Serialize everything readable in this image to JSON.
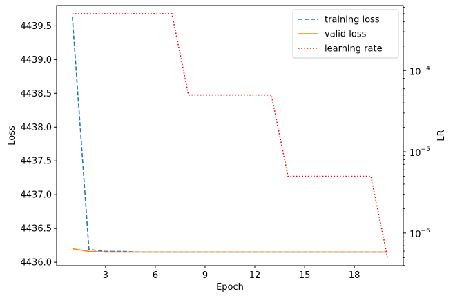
{
  "chart_data": {
    "type": "line",
    "xlabel": "Epoch",
    "ylabel_left": "Loss",
    "ylabel_right": "LR",
    "x": [
      1,
      2,
      3,
      4,
      5,
      6,
      7,
      8,
      9,
      10,
      11,
      12,
      13,
      14,
      15,
      16,
      17,
      18,
      19,
      20
    ],
    "xticks": [
      3,
      6,
      9,
      12,
      15,
      18
    ],
    "xlim": [
      0.05,
      20.95
    ],
    "ylim_left": [
      4435.95,
      4439.8
    ],
    "yticks_left": [
      4436.0,
      4436.5,
      4437.0,
      4437.5,
      4438.0,
      4438.5,
      4439.0,
      4439.5
    ],
    "yticks_left_labels": [
      "4436.0",
      "4436.5",
      "4437.0",
      "4437.5",
      "4438.0",
      "4438.5",
      "4439.0",
      "4439.5"
    ],
    "ylim_right_log10": [
      -6.4,
      -3.2
    ],
    "yticks_right_exponents": [
      -6,
      -5,
      -4
    ],
    "yscale_right": "log",
    "legend_position": "upper right",
    "series": [
      {
        "name": "training loss",
        "axis": "left",
        "style": "dashed",
        "color": "#1f77b4",
        "values": [
          4439.63,
          4436.19,
          4436.16,
          4436.16,
          4436.15,
          4436.15,
          4436.15,
          4436.15,
          4436.15,
          4436.15,
          4436.15,
          4436.15,
          4436.15,
          4436.15,
          4436.15,
          4436.15,
          4436.15,
          4436.15,
          4436.15,
          4436.15
        ]
      },
      {
        "name": "valid loss",
        "axis": "left",
        "style": "solid",
        "color": "#ff7f0e",
        "values": [
          4436.2,
          4436.16,
          4436.15,
          4436.15,
          4436.15,
          4436.15,
          4436.15,
          4436.15,
          4436.15,
          4436.15,
          4436.15,
          4436.15,
          4436.15,
          4436.15,
          4436.15,
          4436.15,
          4436.15,
          4436.15,
          4436.15,
          4436.15
        ]
      },
      {
        "name": "learning rate",
        "axis": "right",
        "style": "dotted",
        "color": "#ff0000",
        "values": [
          0.0005,
          0.0005,
          0.0005,
          0.0005,
          0.0005,
          0.0005,
          0.0005,
          5e-05,
          5e-05,
          5e-05,
          5e-05,
          5e-05,
          5e-05,
          5e-06,
          5e-06,
          5e-06,
          5e-06,
          5e-06,
          5e-06,
          5e-07
        ]
      }
    ]
  }
}
